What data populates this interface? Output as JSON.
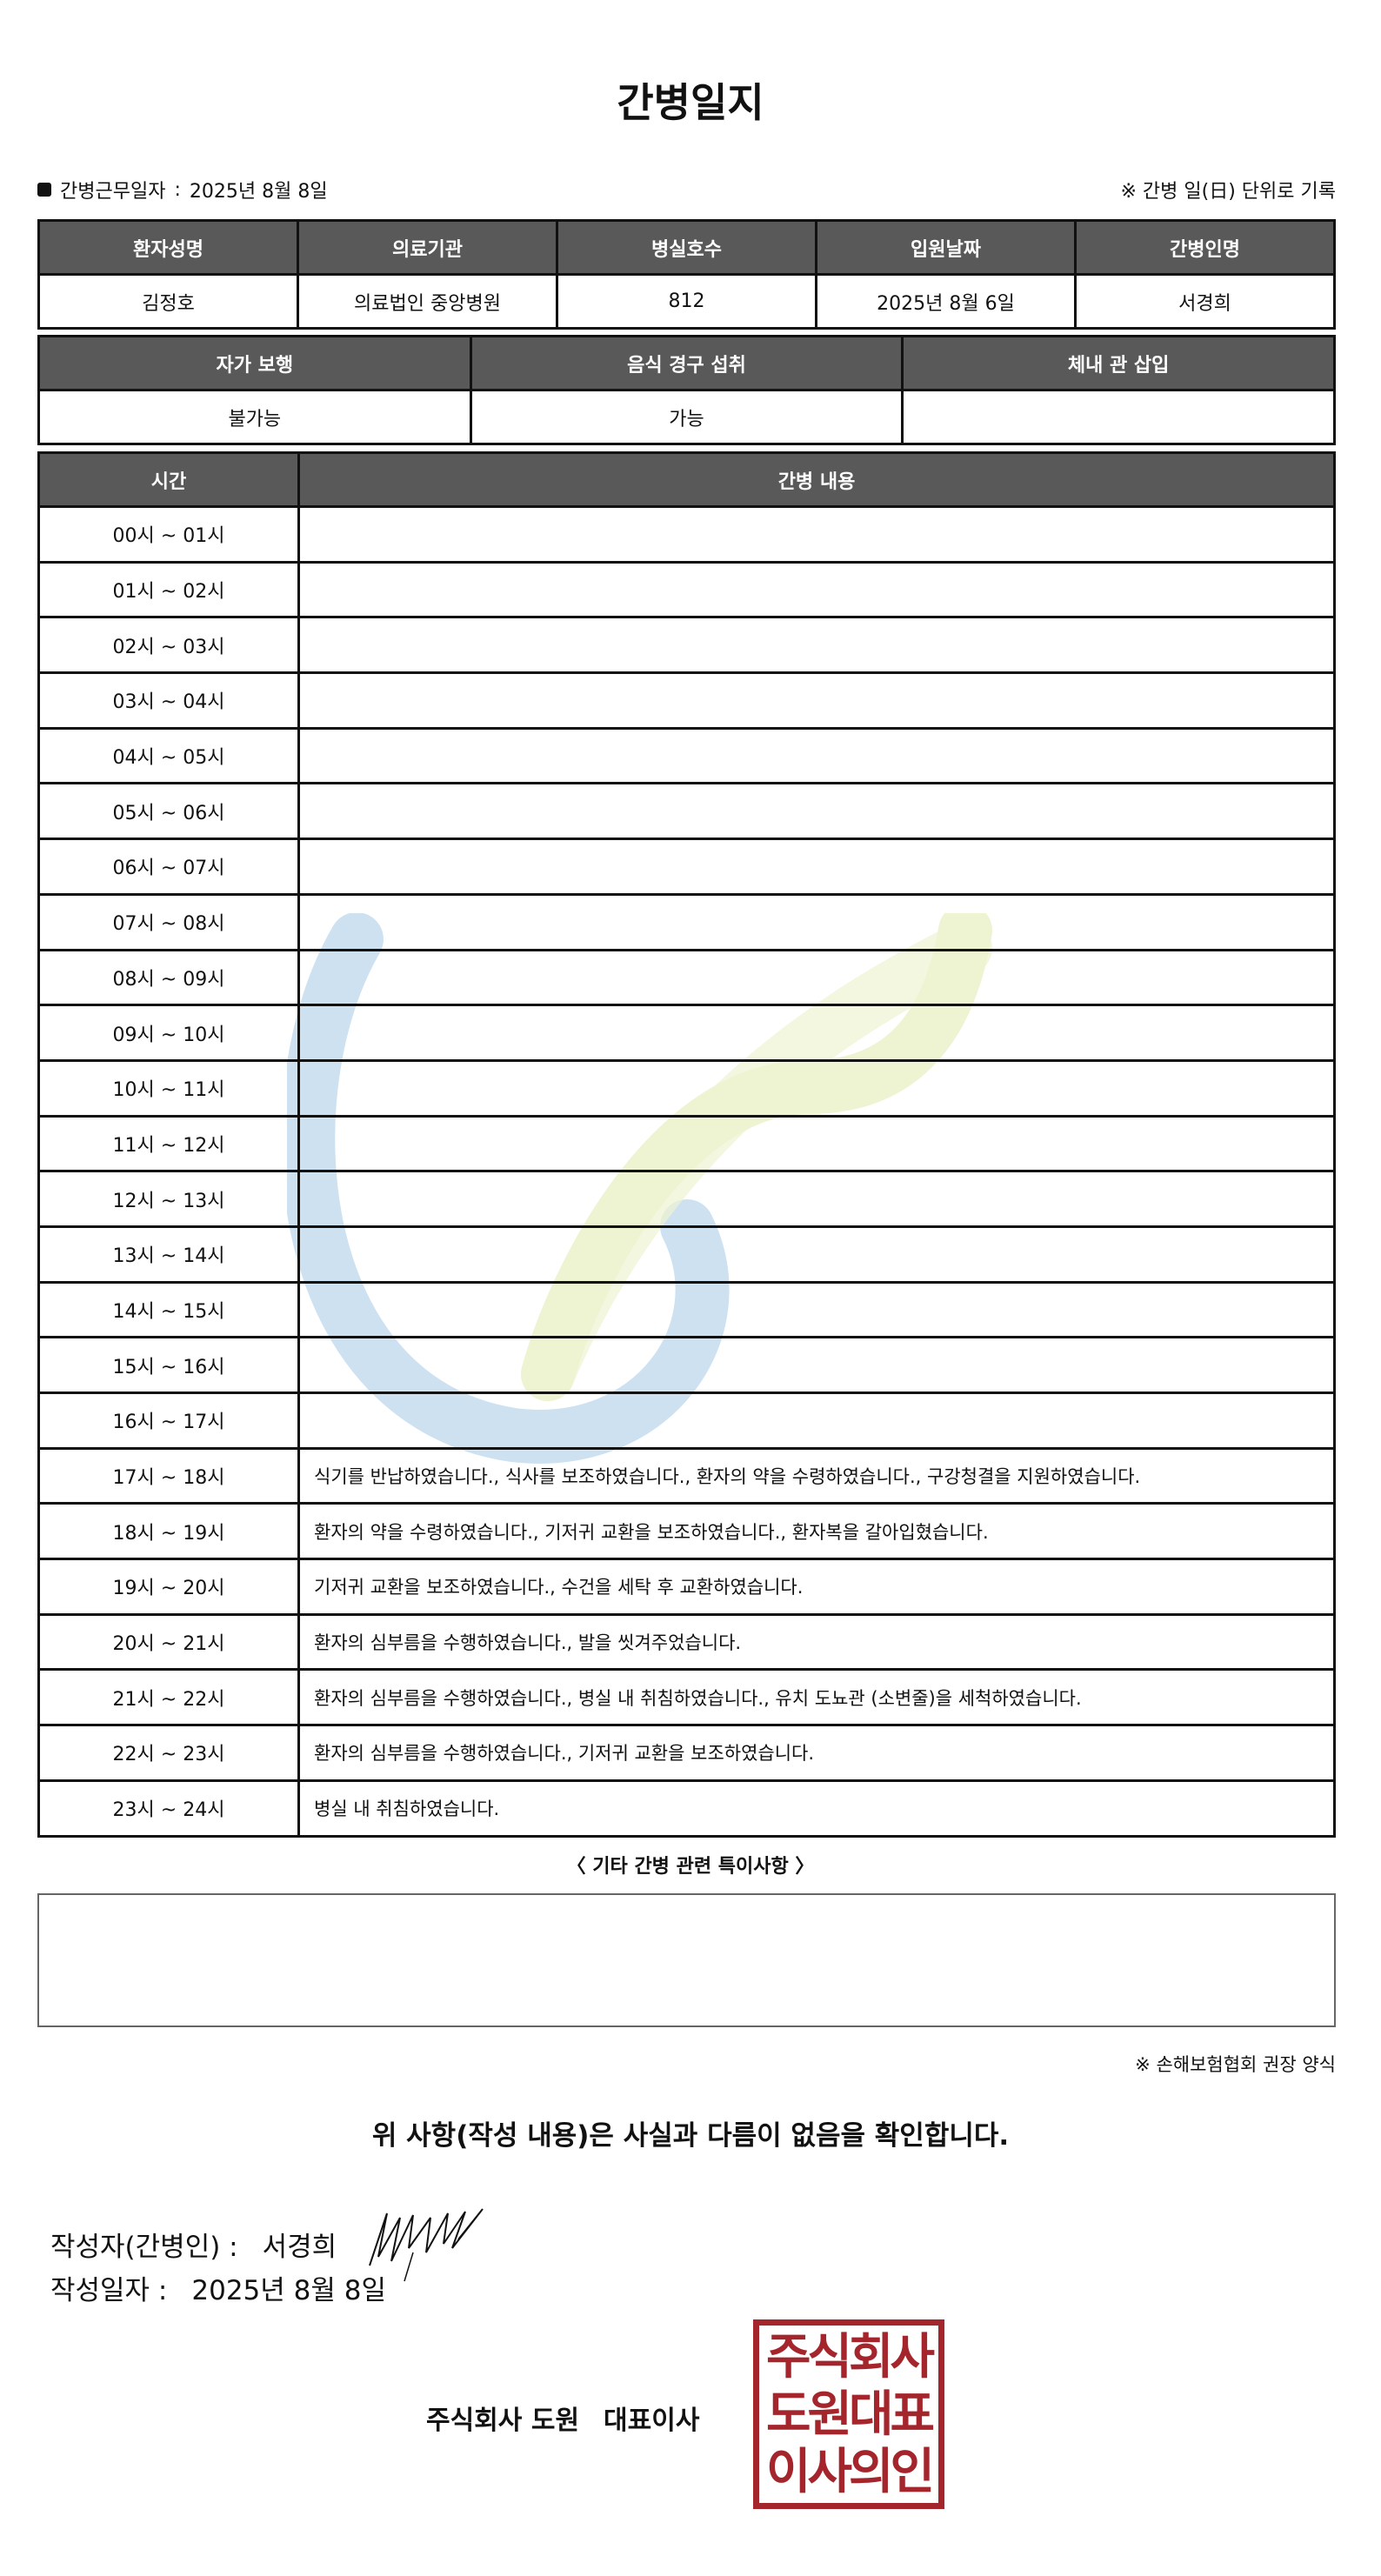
{
  "title": "간병일지",
  "info": {
    "label": "간병근무일자",
    "sep": ":",
    "date": "2025년 8월 8일",
    "record_note": "※ 간병 일(日) 단위로 기록"
  },
  "patient_table": {
    "headers": [
      "환자성명",
      "의료기관",
      "병실호수",
      "입원날짜",
      "간병인명"
    ],
    "values": [
      "김정호",
      "의료법인 중앙병원",
      "812",
      "2025년 8월 6일",
      "서경희"
    ]
  },
  "status_table": {
    "headers": [
      "자가 보행",
      "음식 경구 섭취",
      "체내 관 삽입"
    ],
    "values": [
      "불가능",
      "가능",
      ""
    ]
  },
  "log_table": {
    "headers": [
      "시간",
      "간병 내용"
    ],
    "rows": [
      {
        "time": "00시 ~ 01시",
        "content": ""
      },
      {
        "time": "01시 ~ 02시",
        "content": ""
      },
      {
        "time": "02시 ~ 03시",
        "content": ""
      },
      {
        "time": "03시 ~ 04시",
        "content": ""
      },
      {
        "time": "04시 ~ 05시",
        "content": ""
      },
      {
        "time": "05시 ~ 06시",
        "content": ""
      },
      {
        "time": "06시 ~ 07시",
        "content": ""
      },
      {
        "time": "07시 ~ 08시",
        "content": ""
      },
      {
        "time": "08시 ~ 09시",
        "content": ""
      },
      {
        "time": "09시 ~ 10시",
        "content": ""
      },
      {
        "time": "10시 ~ 11시",
        "content": ""
      },
      {
        "time": "11시 ~ 12시",
        "content": ""
      },
      {
        "time": "12시 ~ 13시",
        "content": ""
      },
      {
        "time": "13시 ~ 14시",
        "content": ""
      },
      {
        "time": "14시 ~ 15시",
        "content": ""
      },
      {
        "time": "15시 ~ 16시",
        "content": ""
      },
      {
        "time": "16시 ~ 17시",
        "content": ""
      },
      {
        "time": "17시 ~ 18시",
        "content": "식기를 반납하였습니다., 식사를 보조하였습니다., 환자의 약을 수령하였습니다., 구강청결을 지원하였습니다."
      },
      {
        "time": "18시 ~ 19시",
        "content": "환자의 약을 수령하였습니다., 기저귀 교환을 보조하였습니다., 환자복을 갈아입혔습니다."
      },
      {
        "time": "19시 ~ 20시",
        "content": "기저귀 교환을 보조하였습니다., 수건을 세탁 후 교환하였습니다."
      },
      {
        "time": "20시 ~ 21시",
        "content": "환자의 심부름을 수행하였습니다., 발을 씻겨주었습니다."
      },
      {
        "time": "21시 ~ 22시",
        "content": "환자의 심부름을 수행하였습니다., 병실 내 취침하였습니다., 유치 도뇨관 (소변줄)을 세척하였습니다."
      },
      {
        "time": "22시 ~ 23시",
        "content": "환자의 심부름을 수행하였습니다., 기저귀 교환을 보조하였습니다."
      },
      {
        "time": "23시 ~ 24시",
        "content": "병실 내 취침하였습니다."
      }
    ]
  },
  "etc_heading": "〈 기타 간병 관련 특이사항 〉",
  "etc_content": "",
  "form_note": "※ 손해보험협회 권장 양식",
  "confirm": "위 사항(작성 내용)은 사실과 다름이 없음을 확인합니다.",
  "writer": {
    "label": "작성자(간병인) :",
    "name": "서경희"
  },
  "written_date": {
    "label": "작성일자 :",
    "date": "2025년 8월 8일"
  },
  "company": {
    "name": "주식회사 도원",
    "title": "대표이사"
  },
  "seal": {
    "lines": [
      "주식회사",
      "도원대표",
      "이사의인"
    ],
    "color": "#a4262c"
  },
  "colors": {
    "header_bg": "#595959",
    "watermark_blue": "#c9def0",
    "watermark_green": "#eef3d2"
  }
}
